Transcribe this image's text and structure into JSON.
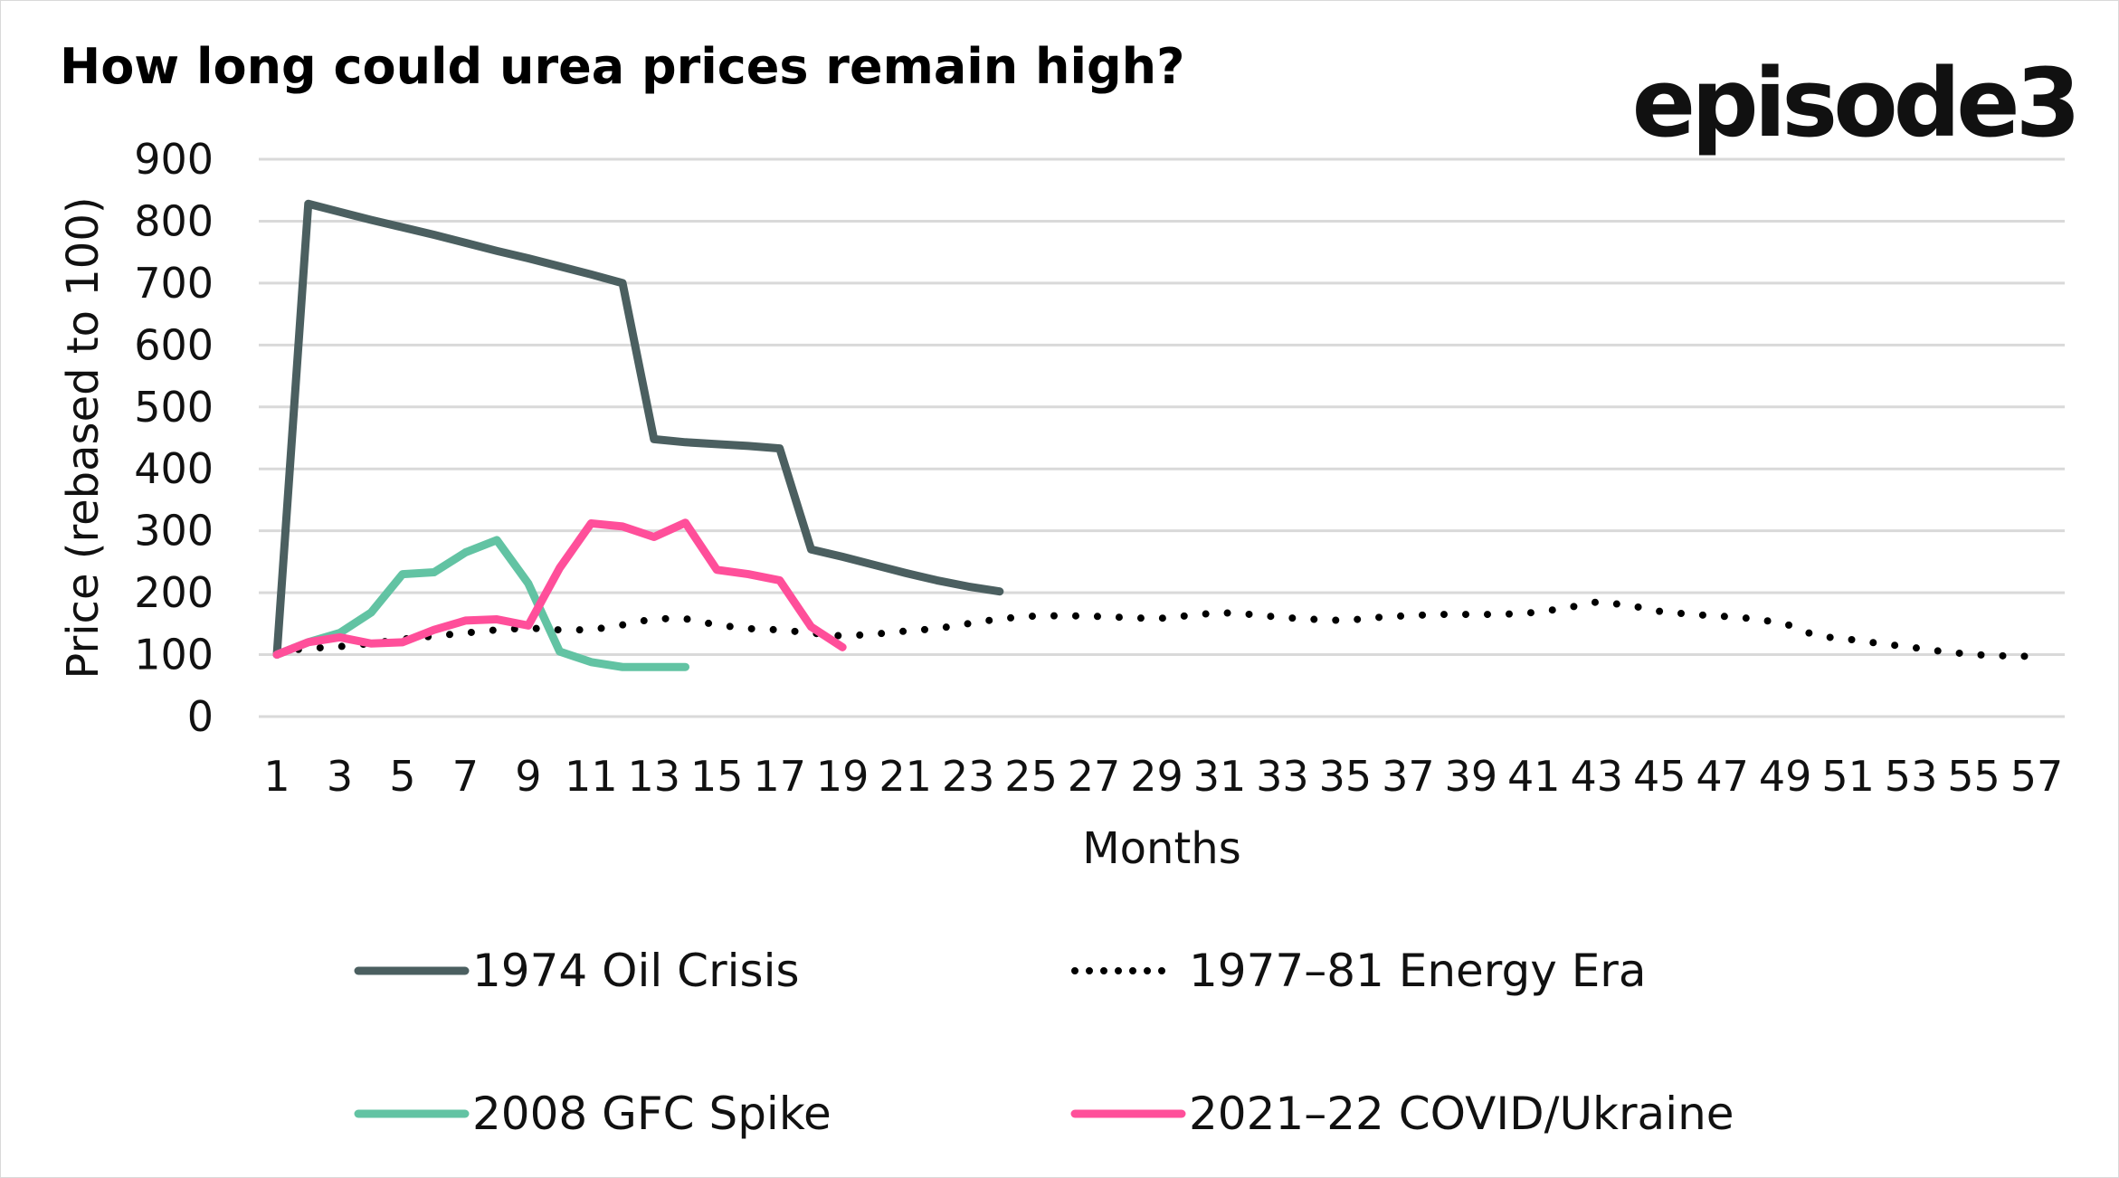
{
  "chart_data": {
    "type": "line",
    "title": "How long could urea prices remain high?",
    "brand": "episode3",
    "xlabel": "Months",
    "ylabel": "Price (rebased to 100)",
    "ylim": [
      0,
      900
    ],
    "yticks": [
      "0",
      "100",
      "200",
      "300",
      "400",
      "500",
      "600",
      "700",
      "800",
      "900"
    ],
    "xlim": [
      1,
      57
    ],
    "xticks": [
      "1",
      "3",
      "5",
      "7",
      "9",
      "11",
      "13",
      "15",
      "17",
      "19",
      "21",
      "23",
      "25",
      "27",
      "29",
      "31",
      "33",
      "35",
      "37",
      "39",
      "41",
      "43",
      "45",
      "47",
      "49",
      "51",
      "53",
      "55",
      "57"
    ],
    "grid": true,
    "legend_position": "bottom",
    "series": [
      {
        "name": "1974 Oil Crisis",
        "color": "#4b5f60",
        "style": "solid",
        "values": [
          100,
          828,
          815,
          802,
          790,
          778,
          765,
          752,
          740,
          727,
          714,
          700,
          448,
          443,
          440,
          437,
          433,
          270,
          258,
          245,
          232,
          220,
          210,
          202
        ]
      },
      {
        "name": "1977–81 Energy Era",
        "color": "#000000",
        "style": "dotted",
        "values": [
          105,
          110,
          113,
          118,
          125,
          130,
          135,
          140,
          143,
          140,
          140,
          148,
          158,
          158,
          148,
          142,
          140,
          135,
          130,
          133,
          138,
          142,
          150,
          158,
          162,
          163,
          162,
          160,
          158,
          163,
          168,
          165,
          160,
          157,
          155,
          160,
          163,
          165,
          165,
          165,
          168,
          175,
          185,
          180,
          170,
          165,
          162,
          158,
          150,
          130,
          125,
          118,
          112,
          105,
          100,
          98,
          97
        ]
      },
      {
        "name": "2008 GFC Spike",
        "color": "#62c3a3",
        "style": "solid",
        "values": [
          100,
          120,
          135,
          168,
          230,
          233,
          265,
          285,
          215,
          105,
          88,
          80,
          80,
          80
        ]
      },
      {
        "name": "2021–22 COVID/Ukraine",
        "color": "#ff4f9a",
        "style": "solid",
        "values": [
          100,
          120,
          128,
          118,
          120,
          140,
          155,
          157,
          147,
          240,
          312,
          307,
          290,
          313,
          237,
          230,
          220,
          145,
          112
        ]
      }
    ]
  }
}
